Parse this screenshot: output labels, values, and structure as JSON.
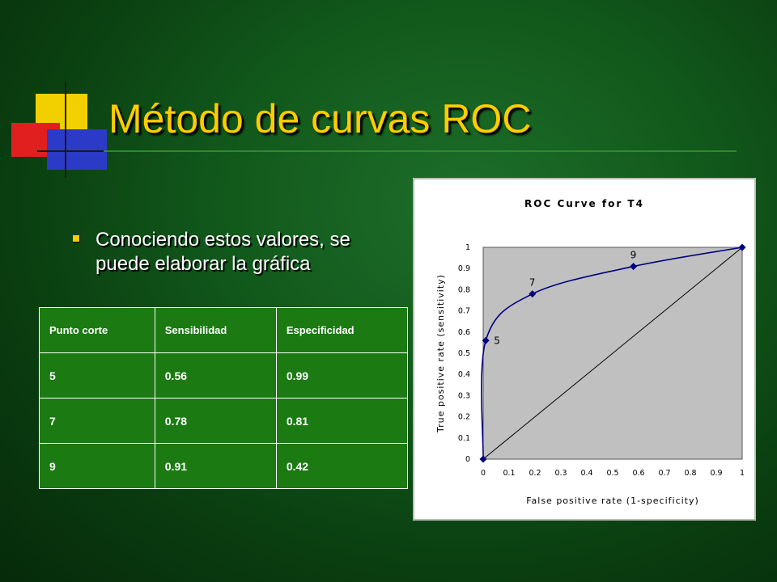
{
  "slide": {
    "title": "Método de curvas ROC",
    "bullet": "Conociendo estos valores, se puede elaborar la gráfica"
  },
  "table": {
    "headers": [
      "Punto corte",
      "Sensibilidad",
      "Especificidad"
    ],
    "rows": [
      [
        "5",
        "0.56",
        "0.99"
      ],
      [
        "7",
        "0.78",
        "0.81"
      ],
      [
        "9",
        "0.91",
        "0.42"
      ]
    ]
  },
  "colors": {
    "title": "#ffcc00",
    "table_bg": "#1b7a12",
    "plot_area": "#c0c0c0",
    "curve": "#000080"
  },
  "chart_data": {
    "type": "line",
    "title": "ROC Curve for T4",
    "xlabel": "False positive rate (1-specificity)",
    "ylabel": "True positive rate (sensitivity)",
    "xlim": [
      0,
      1
    ],
    "ylim": [
      0,
      1
    ],
    "xticks": [
      "0",
      "0.1",
      "0.2",
      "0.3",
      "0.4",
      "0.5",
      "0.6",
      "0.7",
      "0.8",
      "0.9",
      "1"
    ],
    "yticks": [
      "0",
      "0.1",
      "0.2",
      "0.3",
      "0.4",
      "0.5",
      "0.6",
      "0.7",
      "0.8",
      "0.9",
      "1"
    ],
    "series": [
      {
        "points": [
          {
            "x": 0,
            "y": 0,
            "label": ""
          },
          {
            "x": 0.01,
            "y": 0.56,
            "label": "5"
          },
          {
            "x": 0.19,
            "y": 0.78,
            "label": "7"
          },
          {
            "x": 0.58,
            "y": 0.91,
            "label": "9"
          },
          {
            "x": 1,
            "y": 1,
            "label": ""
          }
        ]
      }
    ],
    "reference_line": {
      "from": [
        0,
        0
      ],
      "to": [
        1,
        1
      ]
    },
    "grid": false
  }
}
